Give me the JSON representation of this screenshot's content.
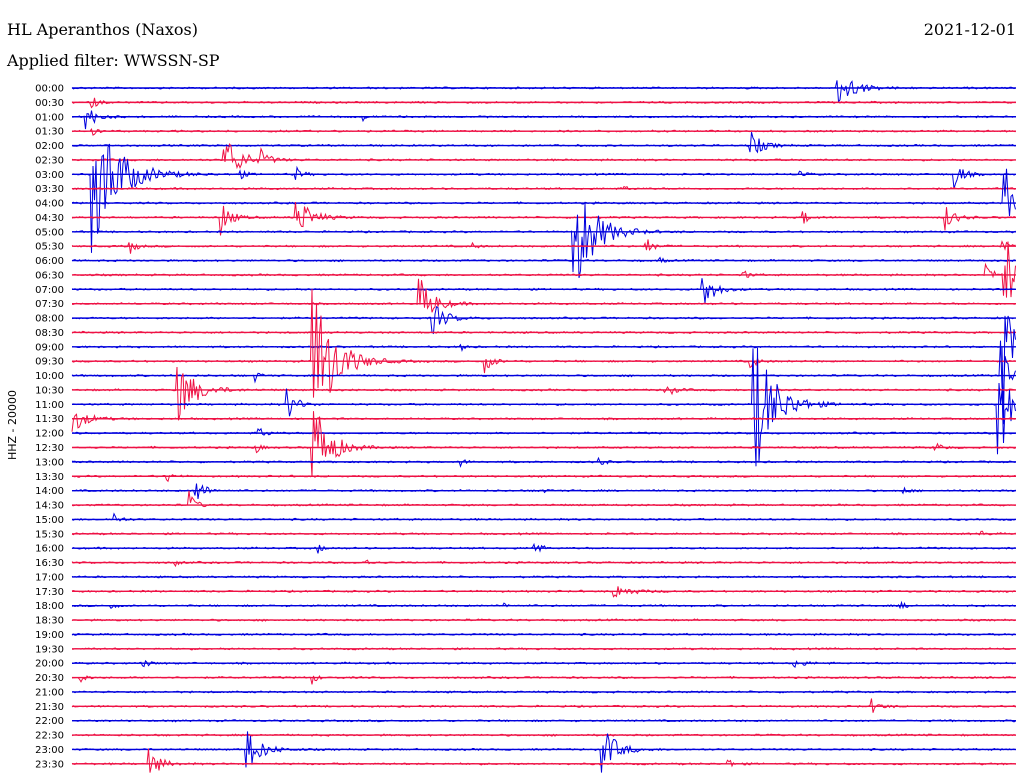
{
  "header": {
    "station": "HL Aperanthos (Naxos)",
    "filter": "Applied filter: WWSSN-SP",
    "date": "2021-12-01"
  },
  "chart_data": {
    "type": "line",
    "title": "HL Aperanthos (Naxos)",
    "ylabel": "HHZ - 20000",
    "xlabel": "",
    "row_labels": [
      "00:00",
      "00:30",
      "01:00",
      "01:30",
      "02:00",
      "02:30",
      "03:00",
      "03:30",
      "04:00",
      "04:30",
      "05:00",
      "05:30",
      "06:00",
      "06:30",
      "07:00",
      "07:30",
      "08:00",
      "08:30",
      "09:00",
      "09:30",
      "10:00",
      "10:30",
      "11:00",
      "11:30",
      "12:00",
      "12:30",
      "13:00",
      "13:30",
      "14:00",
      "14:30",
      "15:00",
      "15:30",
      "16:00",
      "16:30",
      "17:00",
      "17:30",
      "18:00",
      "18:30",
      "19:00",
      "19:30",
      "20:00",
      "20:30",
      "21:00",
      "21:30",
      "22:00",
      "22:30",
      "23:00",
      "23:30"
    ],
    "colors": [
      "#0000dd",
      "#ee1144"
    ],
    "x_range_minutes": [
      0,
      30
    ],
    "events": [
      {
        "row": 0,
        "min": 24.3,
        "amp": 22,
        "dur": 1.0
      },
      {
        "row": 1,
        "min": 0.6,
        "amp": 8,
        "dur": 0.4
      },
      {
        "row": 2,
        "min": 0.4,
        "amp": 16,
        "dur": 0.6
      },
      {
        "row": 2,
        "min": 9.2,
        "amp": 5,
        "dur": 0.3
      },
      {
        "row": 3,
        "min": 0.6,
        "amp": 8,
        "dur": 0.3
      },
      {
        "row": 4,
        "min": 21.5,
        "amp": 18,
        "dur": 0.7
      },
      {
        "row": 5,
        "min": 4.8,
        "amp": 28,
        "dur": 1.0
      },
      {
        "row": 5,
        "min": 6.0,
        "amp": 9,
        "dur": 0.5
      },
      {
        "row": 6,
        "min": 0.6,
        "amp": 85,
        "dur": 1.6
      },
      {
        "row": 6,
        "min": 5.2,
        "amp": 10,
        "dur": 0.4
      },
      {
        "row": 6,
        "min": 7.1,
        "amp": 8,
        "dur": 0.4
      },
      {
        "row": 6,
        "min": 23.1,
        "amp": 8,
        "dur": 0.3
      },
      {
        "row": 6,
        "min": 28.0,
        "amp": 20,
        "dur": 0.5
      },
      {
        "row": 7,
        "min": 17.5,
        "amp": 6,
        "dur": 0.3
      },
      {
        "row": 8,
        "min": 29.6,
        "amp": 60,
        "dur": 0.4
      },
      {
        "row": 9,
        "min": 4.7,
        "amp": 20,
        "dur": 0.6
      },
      {
        "row": 9,
        "min": 7.1,
        "amp": 24,
        "dur": 0.9
      },
      {
        "row": 9,
        "min": 23.2,
        "amp": 8,
        "dur": 0.4
      },
      {
        "row": 9,
        "min": 27.7,
        "amp": 16,
        "dur": 0.6
      },
      {
        "row": 10,
        "min": 15.9,
        "amp": 70,
        "dur": 1.3
      },
      {
        "row": 11,
        "min": 1.8,
        "amp": 10,
        "dur": 0.4
      },
      {
        "row": 11,
        "min": 12.7,
        "amp": 5,
        "dur": 0.3
      },
      {
        "row": 11,
        "min": 18.2,
        "amp": 10,
        "dur": 0.5
      },
      {
        "row": 11,
        "min": 29.5,
        "amp": 18,
        "dur": 0.3
      },
      {
        "row": 12,
        "min": 18.6,
        "amp": 6,
        "dur": 0.3
      },
      {
        "row": 13,
        "min": 21.3,
        "amp": 6,
        "dur": 0.4
      },
      {
        "row": 13,
        "min": 29.0,
        "amp": 18,
        "dur": 0.4
      },
      {
        "row": 13,
        "min": 29.6,
        "amp": 85,
        "dur": 0.4
      },
      {
        "row": 14,
        "min": 20.0,
        "amp": 24,
        "dur": 0.7
      },
      {
        "row": 15,
        "min": 11.0,
        "amp": 30,
        "dur": 0.9
      },
      {
        "row": 16,
        "min": 11.4,
        "amp": 20,
        "dur": 0.8
      },
      {
        "row": 18,
        "min": 12.3,
        "amp": 6,
        "dur": 0.3
      },
      {
        "row": 18,
        "min": 29.6,
        "amp": 80,
        "dur": 0.5
      },
      {
        "row": 19,
        "min": 7.6,
        "amp": 95,
        "dur": 1.3
      },
      {
        "row": 19,
        "min": 13.1,
        "amp": 12,
        "dur": 0.5
      },
      {
        "row": 19,
        "min": 21.5,
        "amp": 12,
        "dur": 0.4
      },
      {
        "row": 20,
        "min": 5.8,
        "amp": 6,
        "dur": 0.3
      },
      {
        "row": 20,
        "min": 29.5,
        "amp": 40,
        "dur": 0.5
      },
      {
        "row": 21,
        "min": 3.3,
        "amp": 38,
        "dur": 1.1
      },
      {
        "row": 21,
        "min": 18.8,
        "amp": 8,
        "dur": 0.6
      },
      {
        "row": 22,
        "min": 6.8,
        "amp": 18,
        "dur": 0.6
      },
      {
        "row": 22,
        "min": 21.6,
        "amp": 85,
        "dur": 1.3
      },
      {
        "row": 22,
        "min": 29.4,
        "amp": 75,
        "dur": 0.7
      },
      {
        "row": 23,
        "min": 0.0,
        "amp": 14,
        "dur": 0.9
      },
      {
        "row": 24,
        "min": 5.9,
        "amp": 10,
        "dur": 0.4
      },
      {
        "row": 25,
        "min": 7.6,
        "amp": 60,
        "dur": 1.0
      },
      {
        "row": 25,
        "min": 5.8,
        "amp": 8,
        "dur": 0.3
      },
      {
        "row": 25,
        "min": 27.4,
        "amp": 8,
        "dur": 0.4
      },
      {
        "row": 26,
        "min": 12.3,
        "amp": 6,
        "dur": 0.3
      },
      {
        "row": 26,
        "min": 16.7,
        "amp": 5,
        "dur": 0.4
      },
      {
        "row": 27,
        "min": 3.0,
        "amp": 10,
        "dur": 0.3
      },
      {
        "row": 28,
        "min": 3.9,
        "amp": 18,
        "dur": 0.5
      },
      {
        "row": 28,
        "min": 14.8,
        "amp": 5,
        "dur": 0.3
      },
      {
        "row": 28,
        "min": 26.4,
        "amp": 5,
        "dur": 0.3
      },
      {
        "row": 29,
        "min": 3.7,
        "amp": 16,
        "dur": 0.4
      },
      {
        "row": 30,
        "min": 1.3,
        "amp": 8,
        "dur": 0.4
      },
      {
        "row": 31,
        "min": 28.8,
        "amp": 6,
        "dur": 0.3
      },
      {
        "row": 32,
        "min": 7.8,
        "amp": 6,
        "dur": 0.3
      },
      {
        "row": 32,
        "min": 14.6,
        "amp": 13,
        "dur": 0.4
      },
      {
        "row": 33,
        "min": 3.2,
        "amp": 6,
        "dur": 0.3
      },
      {
        "row": 33,
        "min": 9.2,
        "amp": 6,
        "dur": 0.4
      },
      {
        "row": 35,
        "min": 17.2,
        "amp": 8,
        "dur": 1.0
      },
      {
        "row": 36,
        "min": 1.2,
        "amp": 5,
        "dur": 0.3
      },
      {
        "row": 36,
        "min": 13.7,
        "amp": 4,
        "dur": 0.3
      },
      {
        "row": 36,
        "min": 26.3,
        "amp": 5,
        "dur": 0.3
      },
      {
        "row": 40,
        "min": 2.2,
        "amp": 6,
        "dur": 0.4
      },
      {
        "row": 40,
        "min": 22.9,
        "amp": 5,
        "dur": 0.7
      },
      {
        "row": 41,
        "min": 0.2,
        "amp": 6,
        "dur": 0.4
      },
      {
        "row": 41,
        "min": 7.6,
        "amp": 8,
        "dur": 0.3
      },
      {
        "row": 43,
        "min": 25.4,
        "amp": 8,
        "dur": 0.5
      },
      {
        "row": 46,
        "min": 5.5,
        "amp": 26,
        "dur": 0.9
      },
      {
        "row": 46,
        "min": 16.8,
        "amp": 28,
        "dur": 0.9
      },
      {
        "row": 47,
        "min": 2.4,
        "amp": 18,
        "dur": 0.7
      },
      {
        "row": 47,
        "min": 20.8,
        "amp": 6,
        "dur": 0.4
      }
    ]
  }
}
